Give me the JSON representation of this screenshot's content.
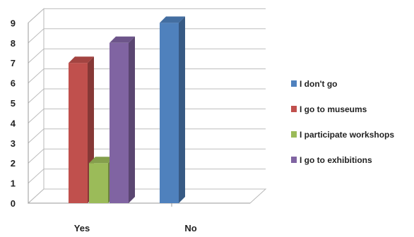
{
  "chart_data": {
    "type": "bar",
    "style": "3d-clustered-column",
    "categories": [
      "Yes",
      "No"
    ],
    "series": [
      {
        "name": "I don't go",
        "values": [
          0,
          9
        ],
        "color": "#4f81bd"
      },
      {
        "name": "I go to museums",
        "values": [
          7,
          0
        ],
        "color": "#c0504d"
      },
      {
        "name": "I participate workshops",
        "values": [
          2,
          0
        ],
        "color": "#9bbb59"
      },
      {
        "name": "I go to exhibitions",
        "values": [
          8,
          0
        ],
        "color": "#8064a2"
      }
    ],
    "yticks": [
      "0",
      "1",
      "2",
      "3",
      "4",
      "5",
      "6",
      "7",
      "8",
      "9"
    ],
    "ylim": [
      0,
      9
    ],
    "grid": true,
    "legend_position": "right",
    "title": "",
    "xlabel": "",
    "ylabel": ""
  }
}
